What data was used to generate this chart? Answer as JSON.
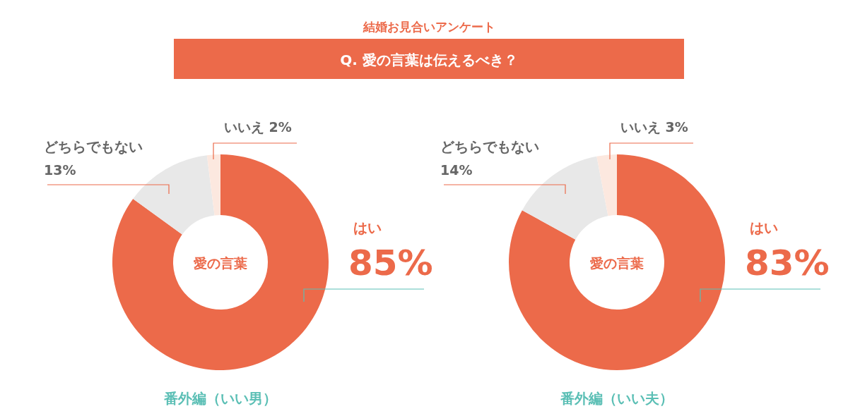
{
  "chart_data": [
    {
      "type": "other",
      "title": "結婚お見合いアンケート",
      "subtitle": "Q. 愛の言葉は伝えるべき？"
    },
    {
      "type": "donut",
      "title": "番外編（いい男）",
      "categories": [
        "はい",
        "どちらでもない",
        "いいえ"
      ],
      "values": [
        85,
        13,
        2
      ],
      "value_labels": [
        "85%",
        "13%",
        "2%"
      ],
      "colors": [
        "#ec6a4a",
        "#e8e8e8",
        "#fce8df"
      ],
      "annotations": [
        "愛の言葉"
      ]
    },
    {
      "type": "donut",
      "title": "番外編（いい夫）",
      "categories": [
        "はい",
        "どちらでもない",
        "いいえ"
      ],
      "values": [
        83,
        14,
        3
      ],
      "value_labels": [
        "83%",
        "14%",
        "3%"
      ],
      "colors": [
        "#ec6a4a",
        "#e8e8e8",
        "#fce8df"
      ],
      "annotations": [
        "愛の言葉"
      ]
    }
  ]
}
